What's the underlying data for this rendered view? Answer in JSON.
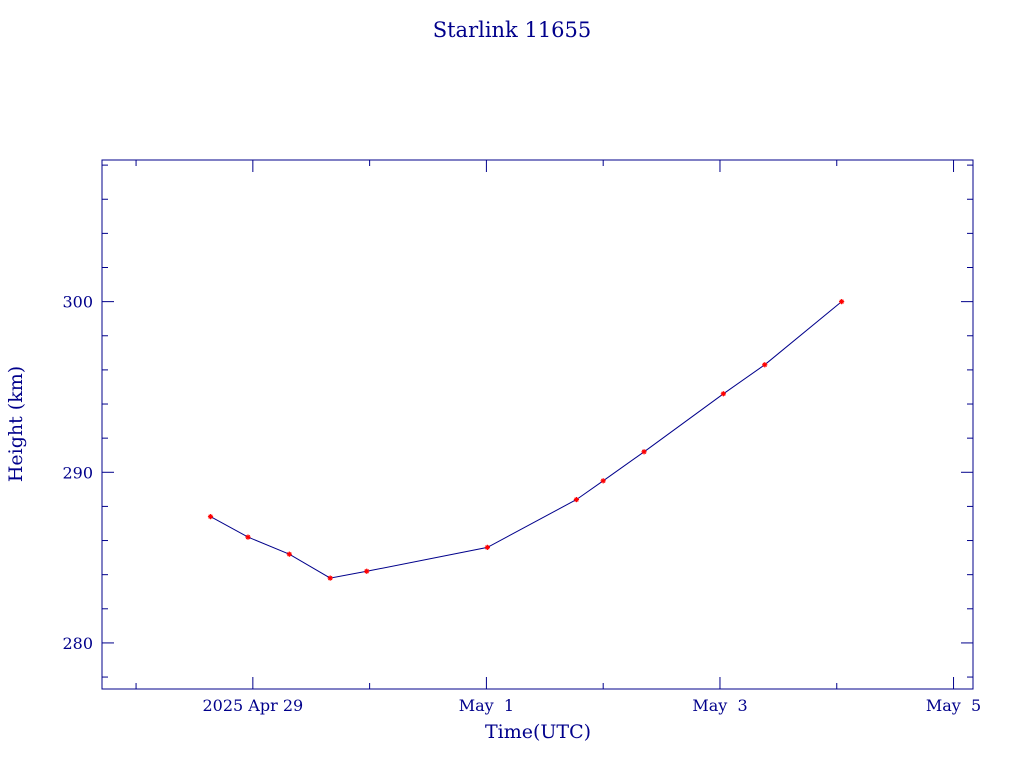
{
  "chart_data": {
    "type": "line",
    "title": "Starlink 11655",
    "xlabel": "Time(UTC)",
    "ylabel": "Height (km)",
    "x_unit": "day",
    "xlim": [
      "2025-04-27T17:00",
      "2025-05-05T04:00"
    ],
    "ylim": [
      277.3,
      308.3
    ],
    "x_ticks": [
      {
        "at": "2025-04-29T00:00",
        "label": "2025 Apr 29"
      },
      {
        "at": "2025-05-01T00:00",
        "label": "May  1"
      },
      {
        "at": "2025-05-03T00:00",
        "label": "May  3"
      },
      {
        "at": "2025-05-05T00:00",
        "label": "May  5"
      }
    ],
    "y_ticks": [
      {
        "value": 280,
        "label": "280"
      },
      {
        "value": 290,
        "label": "290"
      },
      {
        "value": 300,
        "label": "300"
      }
    ],
    "grid": false,
    "line_color": "#00008b",
    "marker_color": "#ff0000",
    "series": [
      {
        "x": [
          "2025-04-28T15:18",
          "2025-04-28T23:00",
          "2025-04-29T07:30",
          "2025-04-29T15:54",
          "2025-04-29T23:24",
          "2025-05-01T00:12",
          "2025-05-01T18:30",
          "2025-05-02T00:00",
          "2025-05-02T08:24",
          "2025-05-03T00:42",
          "2025-05-03T09:12",
          "2025-05-04T01:00"
        ],
        "y": [
          287.4,
          286.2,
          285.2,
          283.8,
          284.2,
          285.6,
          288.4,
          289.5,
          291.2,
          294.6,
          296.3,
          300.0
        ]
      }
    ]
  }
}
